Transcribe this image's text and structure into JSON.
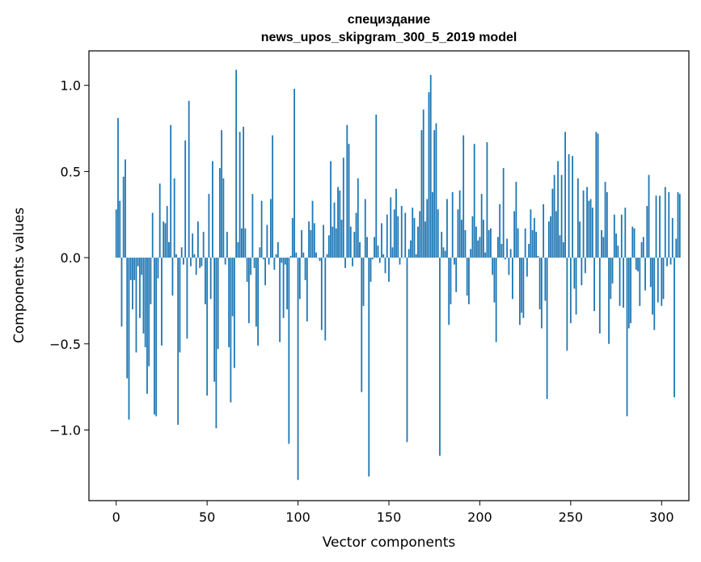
{
  "chart_data": {
    "type": "bar",
    "title": [
      "специздание",
      "news_upos_skipgram_300_5_2019 model"
    ],
    "xlabel": "Vector components",
    "ylabel": "Components values",
    "xlim": [
      -15,
      315
    ],
    "ylim": [
      -1.41,
      1.2
    ],
    "xticks": [
      0,
      50,
      100,
      150,
      200,
      250,
      300
    ],
    "xtick_labels": [
      "0",
      "50",
      "100",
      "150",
      "200",
      "250",
      "300"
    ],
    "yticks": [
      -1.0,
      -0.5,
      0.0,
      0.5,
      1.0
    ],
    "ytick_labels": [
      "−1.0",
      "−0.5",
      "0.0",
      "0.5",
      "1.0"
    ],
    "grid": false,
    "bar_color": "#1f77b4",
    "values": [
      0.28,
      0.81,
      0.33,
      -0.4,
      0.47,
      0.57,
      -0.7,
      -0.94,
      -0.13,
      -0.3,
      -0.13,
      -0.55,
      -0.05,
      -0.35,
      -0.1,
      -0.44,
      -0.52,
      -0.79,
      -0.63,
      -0.27,
      0.26,
      -0.91,
      -0.92,
      -0.12,
      0.43,
      -0.51,
      0.21,
      0.2,
      0.3,
      0.09,
      0.77,
      -0.22,
      0.46,
      0.02,
      -0.97,
      -0.55,
      0.06,
      -0.04,
      0.68,
      -0.47,
      0.91,
      -0.05,
      0.14,
      0.02,
      -0.1,
      0.21,
      -0.06,
      -0.05,
      0.15,
      -0.27,
      -0.8,
      0.37,
      -0.24,
      0.56,
      -0.72,
      -0.99,
      -0.53,
      0.52,
      0.74,
      0.46,
      -0.04,
      0.15,
      -0.52,
      -0.84,
      -0.34,
      -0.64,
      1.09,
      0.09,
      0.73,
      0.17,
      0.76,
      0.17,
      -0.14,
      -0.38,
      -0.1,
      0.37,
      -0.06,
      -0.4,
      -0.51,
      0.06,
      0.33,
      -0.01,
      -0.16,
      0.19,
      -0.04,
      0.34,
      0.71,
      -0.07,
      0.02,
      0.09,
      -0.49,
      -0.03,
      -0.35,
      -0.04,
      -0.3,
      -1.08,
      0.01,
      0.23,
      0.98,
      0.03,
      -1.29,
      -0.24,
      0.16,
      0.03,
      -0.13,
      -0.37,
      0.21,
      0.16,
      0.33,
      0.2,
      0.03,
      0.0,
      -0.02,
      -0.42,
      0.19,
      -0.48,
      0.02,
      0.13,
      0.56,
      0.18,
      0.32,
      0.17,
      0.41,
      0.39,
      0.22,
      0.58,
      -0.06,
      0.77,
      0.66,
      0.18,
      -0.05,
      0.15,
      0.26,
      0.46,
      0.09,
      -0.78,
      -0.28,
      0.34,
      0.12,
      -1.27,
      -0.14,
      -0.01,
      0.12,
      0.83,
      0.07,
      -0.03,
      0.2,
      0.02,
      -0.09,
      0.25,
      -0.14,
      0.35,
      0.06,
      0.28,
      0.4,
      0.24,
      -0.04,
      0.3,
      0.0,
      0.26,
      -1.07,
      0.05,
      0.1,
      0.29,
      0.23,
      0.02,
      0.18,
      0.27,
      0.74,
      0.86,
      0.21,
      0.34,
      0.96,
      1.06,
      0.38,
      0.74,
      0.78,
      0.28,
      -1.15,
      0.15,
      0.06,
      0.04,
      0.34,
      -0.39,
      -0.27,
      0.38,
      -0.04,
      -0.2,
      0.28,
      0.39,
      0.22,
      0.71,
      0.16,
      -0.22,
      -0.27,
      0.05,
      0.24,
      0.66,
      0.18,
      0.1,
      0.12,
      0.37,
      0.22,
      0.03,
      0.67,
      0.16,
      0.17,
      -0.1,
      -0.26,
      -0.49,
      0.12,
      0.31,
      0.08,
      0.52,
      -0.01,
      0.11,
      -0.1,
      0.05,
      -0.24,
      0.27,
      0.44,
      0.17,
      -0.39,
      -0.32,
      -0.35,
      0.17,
      -0.11,
      0.08,
      0.28,
      0.16,
      0.23,
      0.15,
      0.01,
      -0.3,
      -0.41,
      0.31,
      -0.25,
      -0.82,
      0.21,
      0.24,
      0.4,
      0.48,
      0.27,
      0.56,
      0.13,
      0.48,
      0.09,
      0.73,
      -0.54,
      0.6,
      -0.38,
      0.59,
      -0.18,
      -0.33,
      0.46,
      0.21,
      -0.16,
      0.39,
      -0.09,
      0.41,
      0.33,
      0.34,
      0.29,
      -0.31,
      0.73,
      0.72,
      -0.44,
      0.16,
      0.12,
      0.44,
      0.38,
      -0.5,
      -0.24,
      -0.15,
      0.25,
      0.14,
      0.07,
      -0.28,
      0.25,
      -0.29,
      0.29,
      -0.92,
      -0.41,
      -0.38,
      0.18,
      0.17,
      -0.07,
      -0.08,
      -0.28,
      0.09,
      0.12,
      -0.19,
      0.3,
      0.48,
      -0.17,
      -0.33,
      -0.42,
      0.36,
      -0.26,
      0.36,
      -0.28,
      -0.24,
      0.41,
      -0.05,
      0.38,
      -0.04,
      0.23,
      -0.81,
      0.11,
      0.38,
      0.37
    ]
  }
}
